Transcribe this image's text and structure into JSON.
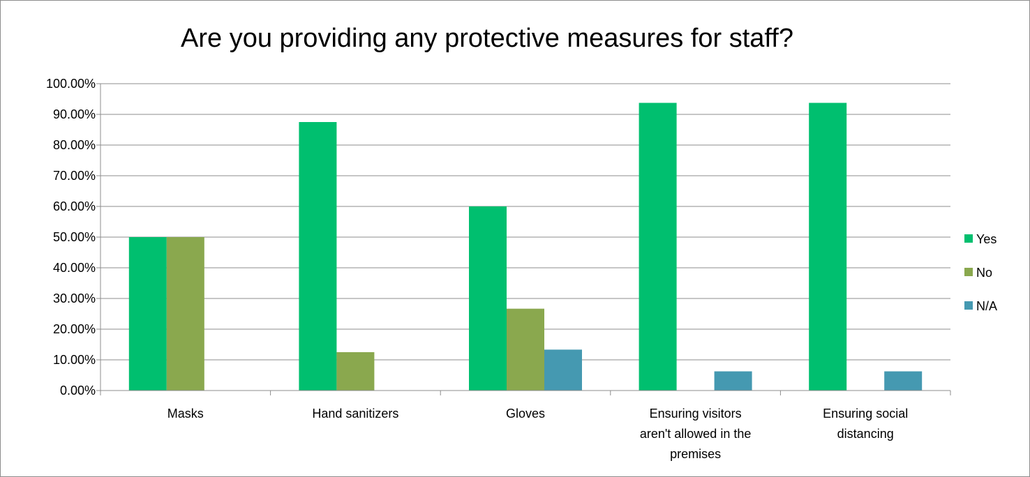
{
  "chart_data": {
    "type": "bar",
    "title": "Are you providing any protective measures for staff?",
    "xlabel": "",
    "ylabel": "",
    "categories": [
      [
        "Masks"
      ],
      [
        "Hand sanitizers"
      ],
      [
        "Gloves"
      ],
      [
        "Ensuring visitors",
        "aren't allowed in the",
        "premises"
      ],
      [
        "Ensuring social",
        "distancing"
      ]
    ],
    "series": [
      {
        "name": "Yes",
        "color": "#00bf6f",
        "values": [
          50.0,
          87.5,
          60.0,
          93.75,
          93.75
        ]
      },
      {
        "name": "No",
        "color": "#8aa84e",
        "values": [
          50.0,
          12.5,
          26.67,
          0,
          0
        ]
      },
      {
        "name": "N/A",
        "color": "#4599b1",
        "values": [
          0,
          0,
          13.33,
          6.25,
          6.25
        ]
      }
    ],
    "ylim": [
      0,
      100
    ],
    "y_ticks": [
      "0.00%",
      "10.00%",
      "20.00%",
      "30.00%",
      "40.00%",
      "50.00%",
      "60.00%",
      "70.00%",
      "80.00%",
      "90.00%",
      "100.00%"
    ],
    "grid": true,
    "legend_position": "right"
  }
}
